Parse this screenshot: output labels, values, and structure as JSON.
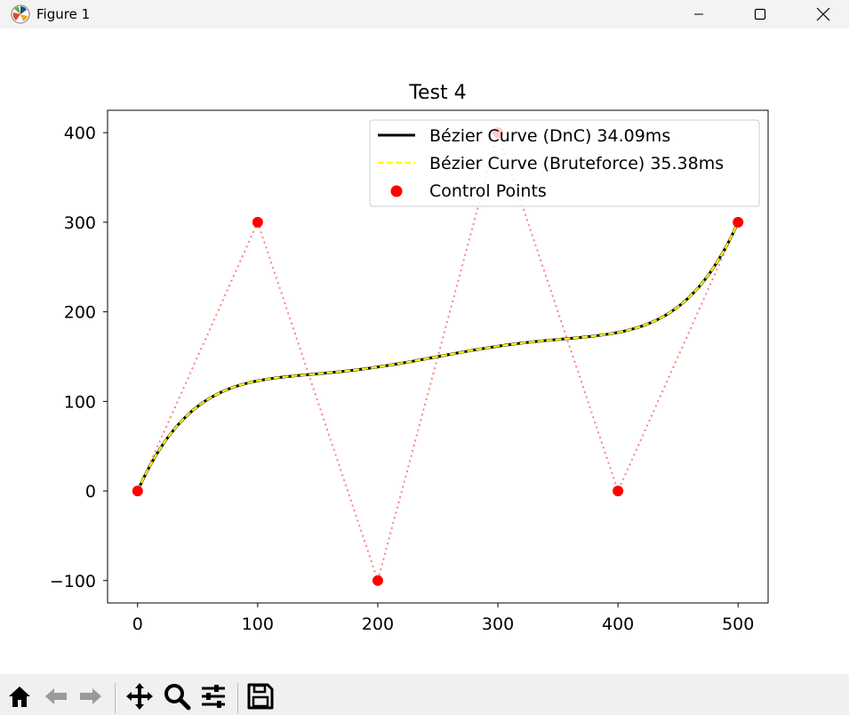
{
  "window": {
    "title": "Figure 1",
    "controls": [
      "minimize",
      "maximize",
      "close"
    ]
  },
  "toolbar": {
    "buttons": [
      {
        "name": "home-icon"
      },
      {
        "name": "back-icon"
      },
      {
        "name": "forward-icon"
      },
      {
        "name": "pan-icon"
      },
      {
        "name": "zoom-icon"
      },
      {
        "name": "configure-subplots-icon"
      },
      {
        "name": "save-icon"
      }
    ]
  },
  "chart_data": {
    "type": "line",
    "title": "Test 4",
    "xlabel": "",
    "ylabel": "",
    "xlim": [
      -25,
      525
    ],
    "ylim": [
      -125,
      425
    ],
    "xticks": [
      0,
      100,
      200,
      300,
      400,
      500
    ],
    "xtick_labels": [
      "0",
      "100",
      "200",
      "300",
      "400",
      "500"
    ],
    "yticks": [
      -100,
      0,
      100,
      200,
      300,
      400
    ],
    "ytick_labels": [
      "−100",
      "0",
      "100",
      "200",
      "300",
      "400"
    ],
    "grid": false,
    "legend_position": "top-right",
    "control_points": [
      [
        0,
        0
      ],
      [
        100,
        300
      ],
      [
        200,
        -100
      ],
      [
        300,
        400
      ],
      [
        400,
        0
      ],
      [
        500,
        300
      ]
    ],
    "series": [
      {
        "name": "Bézier Curve (DnC) 34.09ms",
        "style": "solid",
        "color": "#000000",
        "kind": "bezier"
      },
      {
        "name": "Bézier Curve (Bruteforce) 35.38ms",
        "style": "dashed",
        "color": "#ffff00",
        "kind": "bezier"
      },
      {
        "name": "Control Points",
        "style": "scatter",
        "color": "#ff0000",
        "kind": "points"
      }
    ],
    "control_polygon": {
      "style": "dotted",
      "color": "#ff7f7f"
    }
  }
}
